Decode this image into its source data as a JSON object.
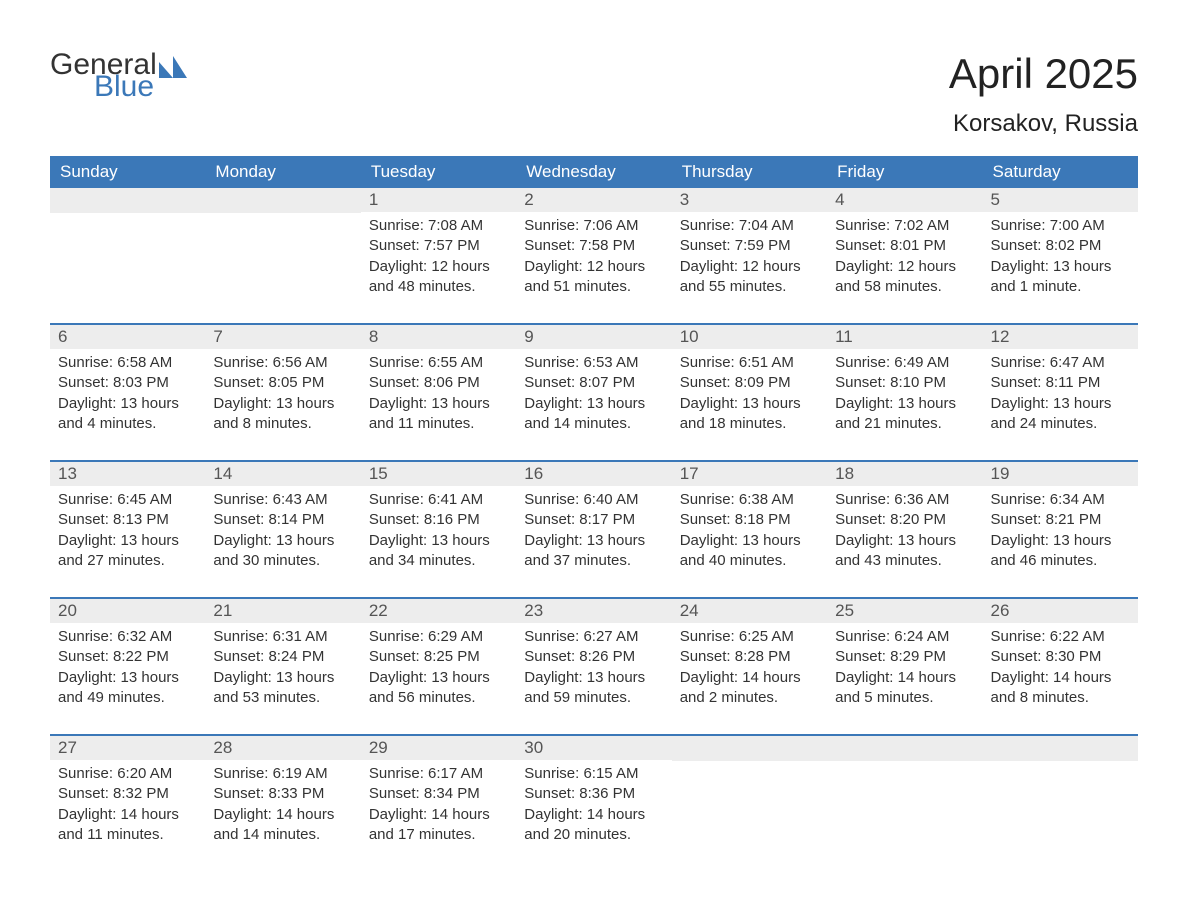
{
  "logo": {
    "general": "General",
    "blue": "Blue",
    "icon_color": "#3b78b8"
  },
  "header": {
    "month_title": "April 2025",
    "location": "Korsakov, Russia"
  },
  "colors": {
    "header_bg": "#3b78b8",
    "header_text": "#ffffff",
    "daynum_bg": "#ededed",
    "daynum_text": "#555555",
    "body_text": "#333333",
    "week_border": "#3b78b8",
    "page_bg": "#ffffff"
  },
  "weekdays": [
    "Sunday",
    "Monday",
    "Tuesday",
    "Wednesday",
    "Thursday",
    "Friday",
    "Saturday"
  ],
  "weeks": [
    [
      {
        "day": "",
        "sunrise": "",
        "sunset": "",
        "daylight": ""
      },
      {
        "day": "",
        "sunrise": "",
        "sunset": "",
        "daylight": ""
      },
      {
        "day": "1",
        "sunrise": "Sunrise: 7:08 AM",
        "sunset": "Sunset: 7:57 PM",
        "daylight": "Daylight: 12 hours and 48 minutes."
      },
      {
        "day": "2",
        "sunrise": "Sunrise: 7:06 AM",
        "sunset": "Sunset: 7:58 PM",
        "daylight": "Daylight: 12 hours and 51 minutes."
      },
      {
        "day": "3",
        "sunrise": "Sunrise: 7:04 AM",
        "sunset": "Sunset: 7:59 PM",
        "daylight": "Daylight: 12 hours and 55 minutes."
      },
      {
        "day": "4",
        "sunrise": "Sunrise: 7:02 AM",
        "sunset": "Sunset: 8:01 PM",
        "daylight": "Daylight: 12 hours and 58 minutes."
      },
      {
        "day": "5",
        "sunrise": "Sunrise: 7:00 AM",
        "sunset": "Sunset: 8:02 PM",
        "daylight": "Daylight: 13 hours and 1 minute."
      }
    ],
    [
      {
        "day": "6",
        "sunrise": "Sunrise: 6:58 AM",
        "sunset": "Sunset: 8:03 PM",
        "daylight": "Daylight: 13 hours and 4 minutes."
      },
      {
        "day": "7",
        "sunrise": "Sunrise: 6:56 AM",
        "sunset": "Sunset: 8:05 PM",
        "daylight": "Daylight: 13 hours and 8 minutes."
      },
      {
        "day": "8",
        "sunrise": "Sunrise: 6:55 AM",
        "sunset": "Sunset: 8:06 PM",
        "daylight": "Daylight: 13 hours and 11 minutes."
      },
      {
        "day": "9",
        "sunrise": "Sunrise: 6:53 AM",
        "sunset": "Sunset: 8:07 PM",
        "daylight": "Daylight: 13 hours and 14 minutes."
      },
      {
        "day": "10",
        "sunrise": "Sunrise: 6:51 AM",
        "sunset": "Sunset: 8:09 PM",
        "daylight": "Daylight: 13 hours and 18 minutes."
      },
      {
        "day": "11",
        "sunrise": "Sunrise: 6:49 AM",
        "sunset": "Sunset: 8:10 PM",
        "daylight": "Daylight: 13 hours and 21 minutes."
      },
      {
        "day": "12",
        "sunrise": "Sunrise: 6:47 AM",
        "sunset": "Sunset: 8:11 PM",
        "daylight": "Daylight: 13 hours and 24 minutes."
      }
    ],
    [
      {
        "day": "13",
        "sunrise": "Sunrise: 6:45 AM",
        "sunset": "Sunset: 8:13 PM",
        "daylight": "Daylight: 13 hours and 27 minutes."
      },
      {
        "day": "14",
        "sunrise": "Sunrise: 6:43 AM",
        "sunset": "Sunset: 8:14 PM",
        "daylight": "Daylight: 13 hours and 30 minutes."
      },
      {
        "day": "15",
        "sunrise": "Sunrise: 6:41 AM",
        "sunset": "Sunset: 8:16 PM",
        "daylight": "Daylight: 13 hours and 34 minutes."
      },
      {
        "day": "16",
        "sunrise": "Sunrise: 6:40 AM",
        "sunset": "Sunset: 8:17 PM",
        "daylight": "Daylight: 13 hours and 37 minutes."
      },
      {
        "day": "17",
        "sunrise": "Sunrise: 6:38 AM",
        "sunset": "Sunset: 8:18 PM",
        "daylight": "Daylight: 13 hours and 40 minutes."
      },
      {
        "day": "18",
        "sunrise": "Sunrise: 6:36 AM",
        "sunset": "Sunset: 8:20 PM",
        "daylight": "Daylight: 13 hours and 43 minutes."
      },
      {
        "day": "19",
        "sunrise": "Sunrise: 6:34 AM",
        "sunset": "Sunset: 8:21 PM",
        "daylight": "Daylight: 13 hours and 46 minutes."
      }
    ],
    [
      {
        "day": "20",
        "sunrise": "Sunrise: 6:32 AM",
        "sunset": "Sunset: 8:22 PM",
        "daylight": "Daylight: 13 hours and 49 minutes."
      },
      {
        "day": "21",
        "sunrise": "Sunrise: 6:31 AM",
        "sunset": "Sunset: 8:24 PM",
        "daylight": "Daylight: 13 hours and 53 minutes."
      },
      {
        "day": "22",
        "sunrise": "Sunrise: 6:29 AM",
        "sunset": "Sunset: 8:25 PM",
        "daylight": "Daylight: 13 hours and 56 minutes."
      },
      {
        "day": "23",
        "sunrise": "Sunrise: 6:27 AM",
        "sunset": "Sunset: 8:26 PM",
        "daylight": "Daylight: 13 hours and 59 minutes."
      },
      {
        "day": "24",
        "sunrise": "Sunrise: 6:25 AM",
        "sunset": "Sunset: 8:28 PM",
        "daylight": "Daylight: 14 hours and 2 minutes."
      },
      {
        "day": "25",
        "sunrise": "Sunrise: 6:24 AM",
        "sunset": "Sunset: 8:29 PM",
        "daylight": "Daylight: 14 hours and 5 minutes."
      },
      {
        "day": "26",
        "sunrise": "Sunrise: 6:22 AM",
        "sunset": "Sunset: 8:30 PM",
        "daylight": "Daylight: 14 hours and 8 minutes."
      }
    ],
    [
      {
        "day": "27",
        "sunrise": "Sunrise: 6:20 AM",
        "sunset": "Sunset: 8:32 PM",
        "daylight": "Daylight: 14 hours and 11 minutes."
      },
      {
        "day": "28",
        "sunrise": "Sunrise: 6:19 AM",
        "sunset": "Sunset: 8:33 PM",
        "daylight": "Daylight: 14 hours and 14 minutes."
      },
      {
        "day": "29",
        "sunrise": "Sunrise: 6:17 AM",
        "sunset": "Sunset: 8:34 PM",
        "daylight": "Daylight: 14 hours and 17 minutes."
      },
      {
        "day": "30",
        "sunrise": "Sunrise: 6:15 AM",
        "sunset": "Sunset: 8:36 PM",
        "daylight": "Daylight: 14 hours and 20 minutes."
      },
      {
        "day": "",
        "sunrise": "",
        "sunset": "",
        "daylight": ""
      },
      {
        "day": "",
        "sunrise": "",
        "sunset": "",
        "daylight": ""
      },
      {
        "day": "",
        "sunrise": "",
        "sunset": "",
        "daylight": ""
      }
    ]
  ]
}
